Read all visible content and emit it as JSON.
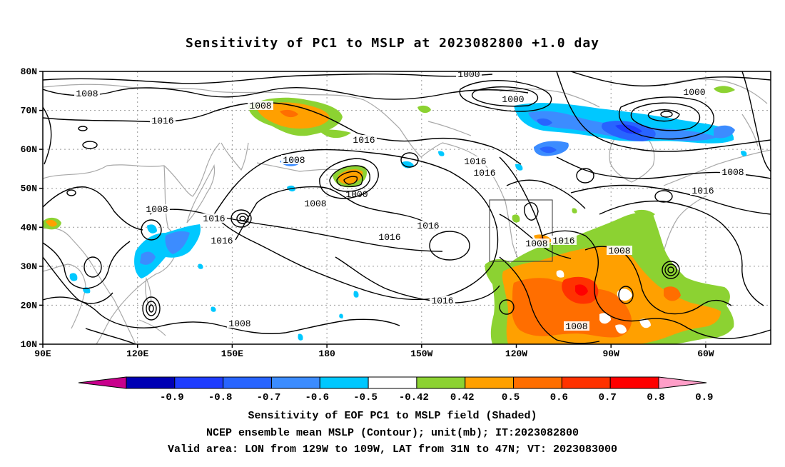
{
  "title": "Sensitivity of PC1 to MSLP at 2023082800 +1.0 day",
  "lat_labels": [
    "80N",
    "70N",
    "60N",
    "50N",
    "40N",
    "30N",
    "20N",
    "10N"
  ],
  "lon_labels": [
    "90E",
    "120E",
    "150E",
    "180",
    "150W",
    "120W",
    "90W",
    "60W"
  ],
  "contour_labels": [
    "1008",
    "1008",
    "1000",
    "1000",
    "1016",
    "1016",
    "1008",
    "1016",
    "1016",
    "1016",
    "1000",
    "1008",
    "1016",
    "1008",
    "1016",
    "1016",
    "1016",
    "1016",
    "1008",
    "1016",
    "1008",
    "1008",
    "1008",
    "1008"
  ],
  "colorbar": {
    "ticks": [
      "-0.9",
      "-0.8",
      "-0.7",
      "-0.6",
      "-0.5",
      "-0.42",
      "0.42",
      "0.5",
      "0.6",
      "0.7",
      "0.8",
      "0.9"
    ],
    "colors": [
      "#c8008c",
      "#0000b4",
      "#1e3cff",
      "#2864ff",
      "#3c8cff",
      "#00c8ff",
      "#ffffff",
      "#8cd232",
      "#ffa000",
      "#ff6e00",
      "#ff3200",
      "#ff0000",
      "#ff9ec8"
    ]
  },
  "valid_area": {
    "lon_min": "129W",
    "lon_max": "109W",
    "lat_min": "31N",
    "lat_max": "47N"
  },
  "captions": [
    "Sensitivity of EOF PC1 to MSLP field (Shaded)",
    "NCEP ensemble mean MSLP (Contour); unit(mb); IT:2023082800",
    "Valid area: LON from 129W to 109W, LAT from 31N to 47N; VT: 2023083000"
  ]
}
